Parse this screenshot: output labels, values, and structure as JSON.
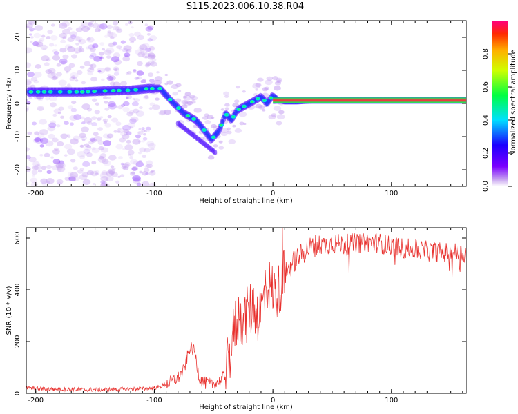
{
  "figure_title": "S115.2023.006.10.38.R04",
  "colors": {
    "line": "#e8312e",
    "axis": "#000000"
  },
  "chart_data": [
    {
      "type": "heatmap",
      "xlabel": "Height of straight line (km)",
      "ylabel": "Frequency (Hz)",
      "xlim": [
        -208,
        163
      ],
      "ylim": [
        -25,
        25
      ],
      "x_ticks": [
        -200,
        -100,
        0,
        100
      ],
      "y_ticks": [
        -20,
        -10,
        0,
        10,
        20
      ],
      "colorbar": {
        "label": "Normalized spectral amplitude",
        "range": [
          0,
          1
        ],
        "ticks": [
          "0.0",
          "0.2",
          "0.4",
          "0.6",
          "0.8"
        ],
        "colormap": "hsv (violet to red)"
      },
      "ridge": {
        "x": [
          -205,
          -180,
          -160,
          -140,
          -120,
          -105,
          -95,
          -85,
          -75,
          -65,
          -58,
          -52,
          -45,
          -40,
          -35,
          -30,
          -25,
          -20,
          -15,
          -10,
          -5,
          0,
          5,
          10,
          20,
          40,
          60,
          100,
          163
        ],
        "y": [
          3.5,
          3.5,
          3.5,
          3.8,
          4,
          4.5,
          4.5,
          0.5,
          -3,
          -5,
          -8,
          -11,
          -8,
          -3,
          -5,
          -2,
          -1,
          0,
          1,
          2,
          0,
          2.5,
          1,
          0.5,
          0.5,
          1,
          1,
          1,
          1
        ]
      }
    },
    {
      "type": "line",
      "xlabel": "Height of straight line (km)",
      "ylabel": "SNR (10 * v/v)",
      "xlim": [
        -208,
        163
      ],
      "ylim": [
        0,
        640
      ],
      "x_ticks": [
        -200,
        -100,
        0,
        100
      ],
      "y_ticks": [
        0,
        200,
        400,
        600
      ],
      "series": [
        {
          "x": [
            -208,
            -180,
            -150,
            -120,
            -105,
            -95,
            -88,
            -80,
            -75,
            -70,
            -66,
            -62,
            -58,
            -52,
            -45,
            -40,
            -36,
            -32,
            -28,
            -24,
            -20,
            -16,
            -12,
            -8,
            -4,
            0,
            4,
            8,
            12,
            16,
            20,
            25,
            30,
            35,
            40,
            45,
            50,
            60,
            70,
            80,
            90,
            100,
            110,
            120,
            130,
            140,
            150,
            163
          ],
          "values": [
            20,
            15,
            14,
            16,
            18,
            25,
            40,
            60,
            90,
            180,
            160,
            60,
            40,
            35,
            45,
            70,
            160,
            260,
            300,
            280,
            320,
            340,
            300,
            360,
            420,
            400,
            380,
            450,
            470,
            500,
            520,
            540,
            560,
            570,
            575,
            575,
            580,
            575,
            580,
            585,
            580,
            570,
            560,
            555,
            550,
            545,
            545,
            540
          ]
        }
      ]
    }
  ]
}
